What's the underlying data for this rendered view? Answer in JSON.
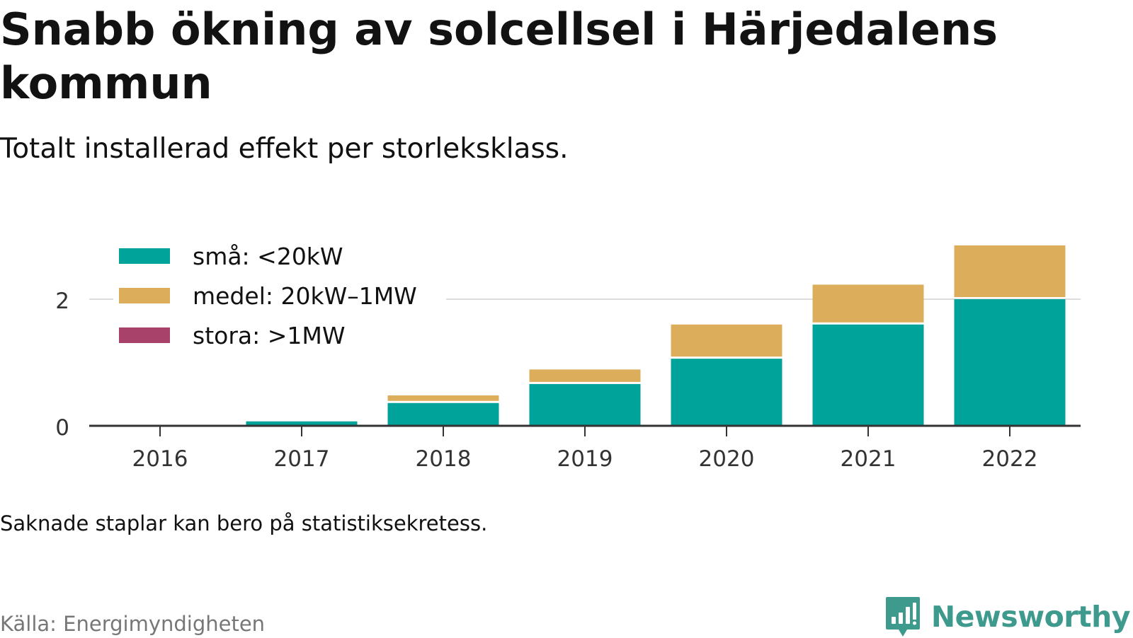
{
  "header": {
    "title": "Snabb ökning av solcellsel i Härjedalens kommun",
    "subtitle": "Totalt installerad effekt per storleksklass."
  },
  "footer": {
    "note": "Saknade staplar kan bero på statistiksekretess.",
    "source": "Källa: Energimyndigheten",
    "brand": "Newsworthy",
    "brand_icon": "bar-chart-speech-bubble-icon",
    "brand_color": "#3f9a8e"
  },
  "chart_data": {
    "type": "bar",
    "stacked": true,
    "title": "Snabb ökning av solcellsel i Härjedalens kommun",
    "subtitle": "Totalt installerad effekt per storleksklass.",
    "xlabel": "",
    "ylabel": "",
    "categories": [
      "2016",
      "2017",
      "2018",
      "2019",
      "2020",
      "2021",
      "2022"
    ],
    "series": [
      {
        "name": "små: <20kW",
        "color": "#00a39a",
        "values": [
          0.0,
          0.07,
          0.36,
          0.66,
          1.06,
          1.6,
          2.0
        ]
      },
      {
        "name": "medel: 20kW–1MW",
        "color": "#dcad5b",
        "values": [
          0.0,
          0.0,
          0.12,
          0.23,
          0.54,
          0.63,
          0.85
        ]
      },
      {
        "name": "stora: >1MW",
        "color": "#a8426a",
        "values": [
          0,
          0,
          0,
          0,
          0,
          0,
          0
        ]
      }
    ],
    "y_ticks": [
      0,
      2
    ],
    "ylim": [
      0,
      2.85
    ],
    "grid": true,
    "legend_position": "top-left"
  }
}
